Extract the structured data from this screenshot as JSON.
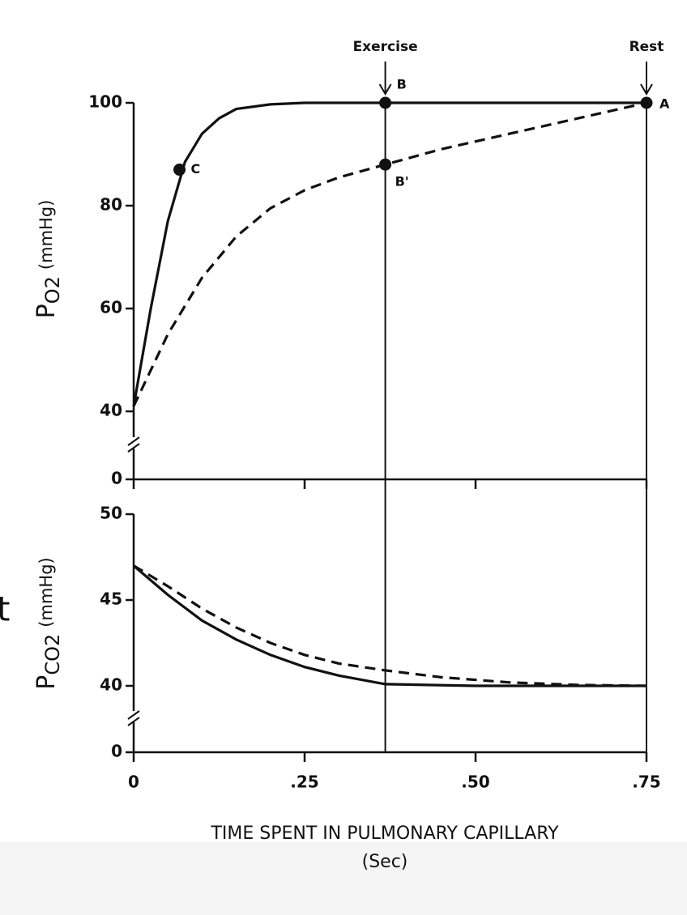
{
  "chart_data": [
    {
      "type": "line",
      "ylabel": [
        "P",
        "O2",
        "(mmHg)"
      ],
      "ylim": [
        0,
        100
      ],
      "ybreak": [
        0,
        40
      ],
      "yticks": [
        0,
        40,
        60,
        80,
        100
      ],
      "series": [
        {
          "color": "#111111",
          "linestyle": "solid",
          "x": [
            0,
            0.025,
            0.05,
            0.075,
            0.1,
            0.125,
            0.15,
            0.2,
            0.25,
            0.368,
            0.5,
            0.75
          ],
          "values": [
            41,
            60,
            77,
            88.5,
            94,
            97,
            98.8,
            99.7,
            100,
            100,
            100,
            100
          ]
        },
        {
          "color": "#111111",
          "linestyle": "dashed",
          "x": [
            0,
            0.05,
            0.1,
            0.15,
            0.2,
            0.25,
            0.3,
            0.368,
            0.45,
            0.55,
            0.65,
            0.75
          ],
          "values": [
            41,
            55,
            66,
            74,
            79.5,
            83,
            85.5,
            88,
            91,
            94,
            97,
            100
          ]
        }
      ],
      "points": [
        {
          "label": "C",
          "x": 0.067,
          "y": 87
        },
        {
          "label": "B",
          "x": 0.368,
          "y": 100
        },
        {
          "label": "B'",
          "x": 0.368,
          "y": 88
        },
        {
          "label": "A",
          "x": 0.75,
          "y": 100
        }
      ],
      "markers": [
        {
          "label": "Exercise",
          "x": 0.368
        },
        {
          "label": "Rest",
          "x": 0.75
        }
      ]
    },
    {
      "type": "line",
      "ylabel": [
        "P",
        "CO2",
        "(mmHg)"
      ],
      "ylim": [
        0,
        50
      ],
      "ybreak": [
        0,
        40
      ],
      "yticks": [
        0,
        40,
        45,
        50
      ],
      "xlim": [
        0,
        0.75
      ],
      "xticks": [
        0,
        {
          "value": 0.25,
          "label": ".25"
        },
        {
          "value": 0.5,
          "label": ".50"
        },
        {
          "value": 0.75,
          "label": ".75"
        }
      ],
      "xlabel": [
        "TIME SPENT IN PULMONARY CAPILLARY",
        "(Sec)"
      ],
      "series": [
        {
          "color": "#111111",
          "linestyle": "solid",
          "x": [
            0,
            0.05,
            0.1,
            0.15,
            0.2,
            0.25,
            0.3,
            0.368,
            0.5,
            0.75
          ],
          "values": [
            47,
            45.3,
            43.8,
            42.7,
            41.8,
            41.1,
            40.6,
            40.1,
            40,
            40
          ]
        },
        {
          "color": "#111111",
          "linestyle": "dashed",
          "x": [
            0,
            0.05,
            0.1,
            0.15,
            0.2,
            0.25,
            0.3,
            0.368,
            0.45,
            0.55,
            0.65,
            0.75
          ],
          "values": [
            47,
            45.8,
            44.5,
            43.4,
            42.5,
            41.8,
            41.3,
            40.9,
            40.5,
            40.2,
            40.05,
            40
          ]
        }
      ]
    }
  ],
  "fragment": "t"
}
